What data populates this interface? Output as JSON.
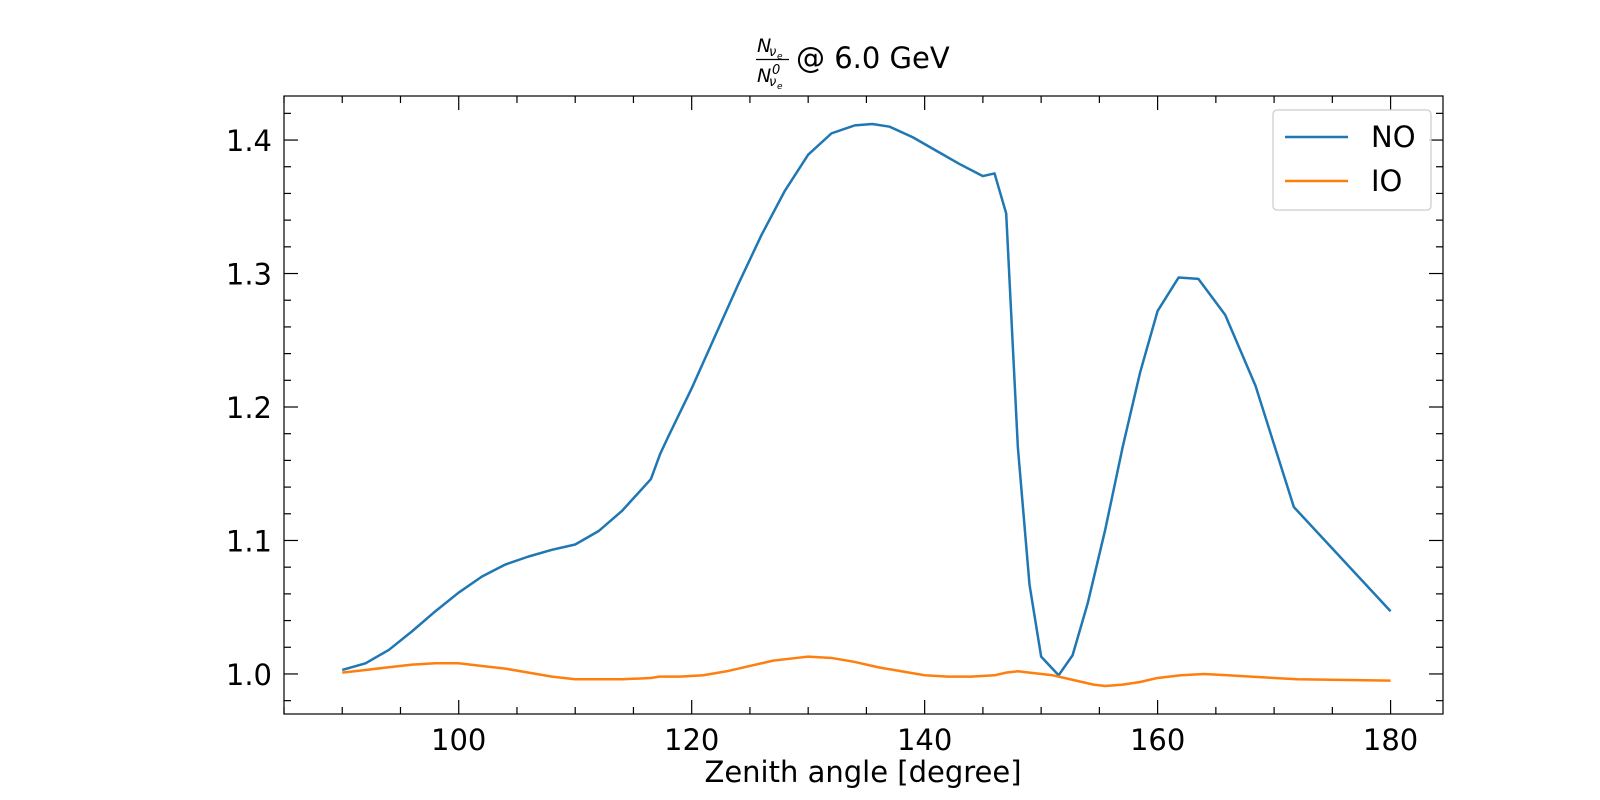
{
  "chart_data": {
    "type": "line",
    "title": {
      "numerator": "N",
      "numerator_sub": "ν",
      "numerator_subsub": "e",
      "denominator": "N",
      "denominator_sup": "0",
      "denominator_sub": "ν",
      "denominator_subsub": "e",
      "suffix": "@ 6.0 GeV"
    },
    "xlabel": "Zenith angle [degree]",
    "ylabel": "",
    "xlim": [
      85,
      184.5
    ],
    "ylim": [
      0.97,
      1.433
    ],
    "xticks": [
      100,
      120,
      140,
      160,
      180
    ],
    "xtick_labels": [
      "100",
      "120",
      "140",
      "160",
      "180"
    ],
    "yticks": [
      1.0,
      1.1,
      1.2,
      1.3,
      1.4
    ],
    "ytick_labels": [
      "1.0",
      "1.1",
      "1.2",
      "1.3",
      "1.4"
    ],
    "x_minor_step": 5,
    "y_minor_step": 0.02,
    "grid": false,
    "legend_position": "top-right",
    "series": [
      {
        "name": "NO",
        "color": "#1f77b4",
        "x": [
          90,
          92,
          94,
          96,
          98,
          100,
          102,
          104,
          106,
          108,
          110,
          112,
          114,
          116.5,
          117.3,
          118,
          120,
          122,
          124,
          126,
          128,
          130,
          132,
          134,
          135.5,
          137,
          139,
          141,
          143,
          145,
          146,
          147,
          148,
          149,
          150,
          151.5,
          152.7,
          154,
          155.5,
          157,
          158.5,
          160,
          161.8,
          163.5,
          165.8,
          168.4,
          171.7,
          180
        ],
        "y": [
          1.003,
          1.008,
          1.018,
          1.032,
          1.047,
          1.061,
          1.073,
          1.082,
          1.088,
          1.093,
          1.097,
          1.107,
          1.122,
          1.146,
          1.165,
          1.178,
          1.214,
          1.253,
          1.292,
          1.329,
          1.362,
          1.389,
          1.405,
          1.411,
          1.412,
          1.41,
          1.402,
          1.392,
          1.382,
          1.373,
          1.375,
          1.345,
          1.17,
          1.067,
          1.013,
          0.999,
          1.014,
          1.053,
          1.108,
          1.17,
          1.226,
          1.272,
          1.297,
          1.296,
          1.269,
          1.216,
          1.125,
          1.047
        ]
      },
      {
        "name": "IO",
        "color": "#ff7f0e",
        "x": [
          90,
          92,
          94,
          96,
          98,
          100,
          102,
          104,
          106,
          108,
          110,
          112,
          114,
          116.5,
          117.2,
          119,
          121,
          123,
          125,
          127,
          129,
          130,
          132,
          134,
          136,
          138,
          140,
          142,
          144,
          146,
          147,
          148,
          149,
          151,
          153,
          154.5,
          155.5,
          157,
          158.5,
          160,
          162,
          164,
          166,
          168,
          170,
          172,
          180
        ],
        "y": [
          1.001,
          1.003,
          1.005,
          1.007,
          1.008,
          1.008,
          1.006,
          1.004,
          1.001,
          0.998,
          0.996,
          0.996,
          0.996,
          0.997,
          0.998,
          0.998,
          0.999,
          1.002,
          1.006,
          1.01,
          1.012,
          1.013,
          1.012,
          1.009,
          1.005,
          1.002,
          0.999,
          0.998,
          0.998,
          0.999,
          1.001,
          1.002,
          1.001,
          0.999,
          0.995,
          0.992,
          0.991,
          0.992,
          0.994,
          0.997,
          0.999,
          1.0,
          0.999,
          0.998,
          0.997,
          0.996,
          0.995
        ]
      }
    ]
  }
}
